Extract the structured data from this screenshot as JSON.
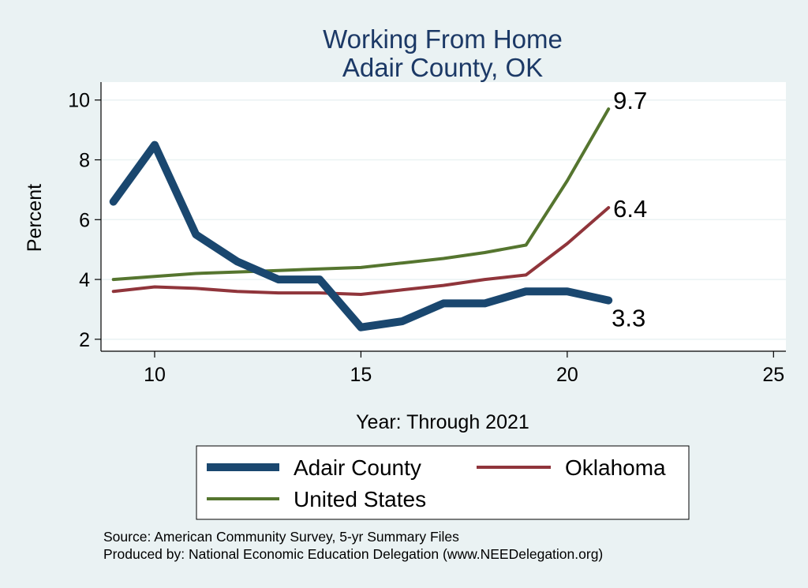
{
  "chart_data": {
    "type": "line",
    "title": "Working From Home",
    "subtitle": "Adair County, OK",
    "xlabel": "Year: Through 2021",
    "ylabel": "Percent",
    "xlim": [
      8.7,
      25.3
    ],
    "ylim": [
      1.6,
      10.6
    ],
    "xticks": [
      10,
      15,
      20,
      25
    ],
    "yticks": [
      2,
      4,
      6,
      8,
      10
    ],
    "grid": true,
    "legend_position": "bottom",
    "series": [
      {
        "name": "Adair County",
        "color": "#1a476f",
        "x": [
          9,
          10,
          11,
          12,
          13,
          14,
          15,
          16,
          17,
          18,
          19,
          20,
          21
        ],
        "values": [
          6.6,
          8.5,
          5.5,
          4.6,
          4.0,
          4.0,
          2.4,
          2.6,
          3.2,
          3.2,
          3.6,
          3.6,
          3.3
        ],
        "end_label": "3.3"
      },
      {
        "name": "Oklahoma",
        "color": "#90353b",
        "x": [
          9,
          10,
          11,
          12,
          13,
          14,
          15,
          16,
          17,
          18,
          19,
          20,
          21
        ],
        "values": [
          3.6,
          3.75,
          3.7,
          3.6,
          3.55,
          3.55,
          3.5,
          3.65,
          3.8,
          4.0,
          4.15,
          5.2,
          6.4
        ],
        "end_label": "6.4"
      },
      {
        "name": "United States",
        "color": "#55752f",
        "x": [
          9,
          10,
          11,
          12,
          13,
          14,
          15,
          16,
          17,
          18,
          19,
          20,
          21
        ],
        "values": [
          4.0,
          4.1,
          4.2,
          4.25,
          4.3,
          4.35,
          4.4,
          4.55,
          4.7,
          4.9,
          5.15,
          7.3,
          9.7
        ],
        "end_label": "9.7"
      }
    ]
  },
  "notes": {
    "source": "Source: American Community Survey, 5-yr Summary Files",
    "produced_by": "Produced by: National Economic Education Delegation (www.NEEDelegation.org)"
  }
}
